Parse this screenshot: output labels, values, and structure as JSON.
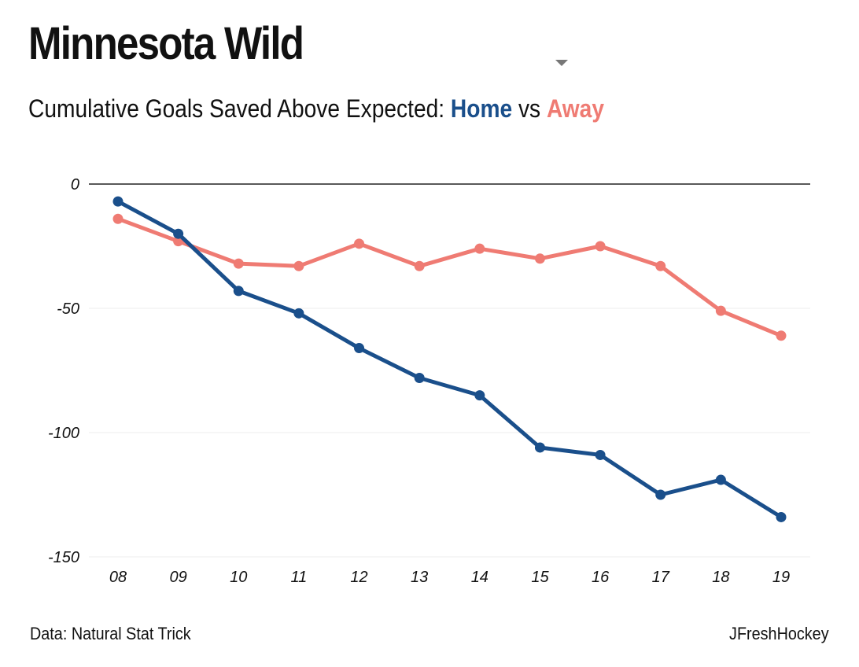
{
  "header": {
    "title": "Minnesota Wild",
    "subtitle_prefix": "Cumulative Goals Saved Above Expected: ",
    "subtitle_home": "Home",
    "subtitle_vs": " vs ",
    "subtitle_away": "Away"
  },
  "footer": {
    "source": "Data: Natural Stat Trick",
    "credit": "JFreshHockey"
  },
  "colors": {
    "home": "#1a4f8b",
    "away": "#ef7b73",
    "zero_line": "#222222",
    "grid": "#eeeeee"
  },
  "chart_data": {
    "type": "line",
    "title": "Minnesota Wild",
    "subtitle": "Cumulative Goals Saved Above Expected: Home vs Away",
    "categories": [
      "08",
      "09",
      "10",
      "11",
      "12",
      "13",
      "14",
      "15",
      "16",
      "17",
      "18",
      "19"
    ],
    "series": [
      {
        "name": "Home",
        "color": "#1a4f8b",
        "values": [
          -7,
          -20,
          -43,
          -52,
          -66,
          -78,
          -85,
          -106,
          -109,
          -125,
          -119,
          -134
        ]
      },
      {
        "name": "Away",
        "color": "#ef7b73",
        "values": [
          -14,
          -23,
          -32,
          -33,
          -24,
          -33,
          -26,
          -30,
          -25,
          -33,
          -51,
          -61
        ]
      }
    ],
    "yticks": [
      0,
      -50,
      -100,
      -150
    ],
    "ylim": [
      -150,
      0
    ],
    "xlabel": "",
    "ylabel": "",
    "grid": true,
    "legend": "in subtitle"
  }
}
